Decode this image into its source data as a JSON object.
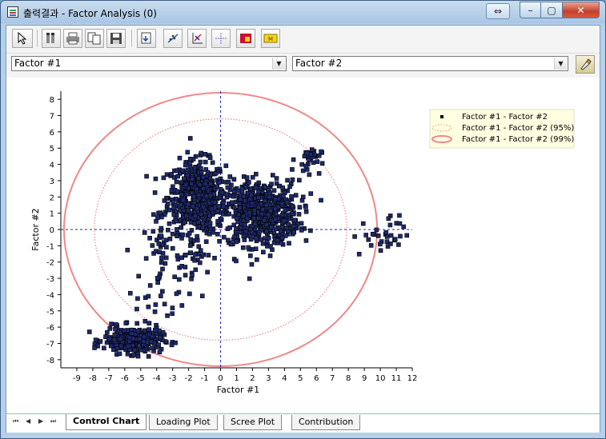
{
  "window": {
    "title": "출력결과 - Factor Analysis (0)"
  },
  "selectors": {
    "x_factor": "Factor #1",
    "y_factor": "Factor #2"
  },
  "tabs": [
    "Control Chart",
    "Loading Plot",
    "Scree Plot",
    "Contribution"
  ],
  "colors": {
    "point": "#1e2a6b",
    "ellipse95": "#f08888",
    "ellipse99": "#f08888",
    "crosshair": "#2020c0",
    "band": "#e8e8e8"
  },
  "chart_data": {
    "type": "scatter",
    "xlabel": "Factor #1",
    "ylabel": "Factor #2",
    "xlim": [
      -10,
      12
    ],
    "ylim": [
      -8.5,
      8.5
    ],
    "xticks": [
      -9,
      -8,
      -7,
      -6,
      -5,
      -4,
      -3,
      -2,
      -1,
      0,
      1,
      2,
      3,
      4,
      5,
      6,
      7,
      8,
      9,
      10,
      11,
      12
    ],
    "yticks": [
      8,
      7,
      6,
      5,
      4,
      3,
      2,
      1,
      0,
      -1,
      -2,
      -3,
      -4,
      -5,
      -6,
      -7,
      -8
    ],
    "legend": [
      "Factor #1 - Factor #2",
      "Factor #1 - Factor #2 (95%)",
      "Factor #1 - Factor #2 (99%)"
    ],
    "ellipse95": {
      "cx": 0,
      "cy": 0,
      "rx": 7.9,
      "ry": 6.8
    },
    "ellipse99": {
      "cx": 0,
      "cy": 0,
      "rx": 9.8,
      "ry": 8.4
    },
    "clusters": [
      {
        "cx": -1.5,
        "cy": 2.0,
        "sx": 0.9,
        "sy": 1.1,
        "n": 520
      },
      {
        "cx": 2.5,
        "cy": 1.0,
        "sx": 1.2,
        "sy": 1.0,
        "n": 620
      },
      {
        "cx": -5.5,
        "cy": -6.8,
        "sx": 0.9,
        "sy": 0.4,
        "n": 330
      },
      {
        "cx": 5.5,
        "cy": 4.3,
        "sx": 0.4,
        "sy": 0.4,
        "n": 30
      },
      {
        "cx": 10.0,
        "cy": -0.4,
        "sx": 0.9,
        "sy": 0.6,
        "n": 35
      },
      {
        "cx": -3.5,
        "cy": -3.5,
        "sx": 0.9,
        "sy": 1.4,
        "n": 45
      },
      {
        "cx": -4.0,
        "cy": -0.5,
        "sx": 0.4,
        "sy": 0.9,
        "n": 25
      },
      {
        "cx": -1.5,
        "cy": -1.5,
        "sx": 0.5,
        "sy": 0.6,
        "n": 25
      }
    ]
  }
}
